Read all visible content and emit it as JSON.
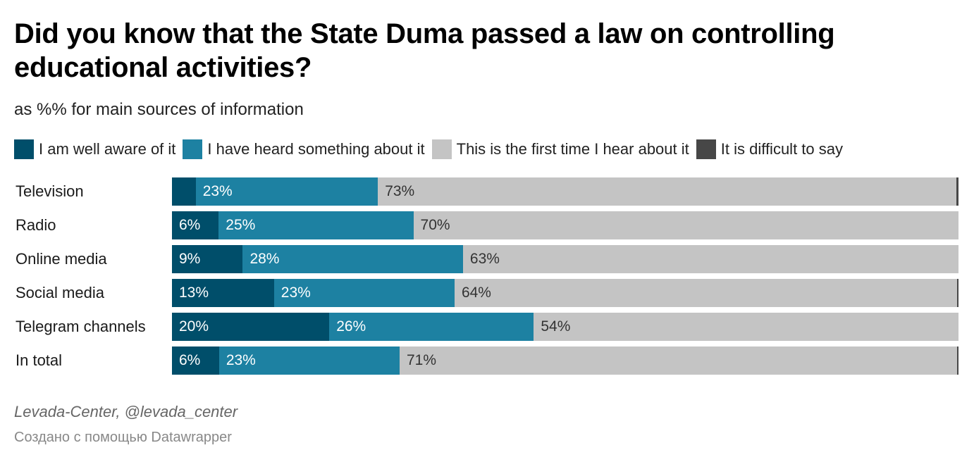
{
  "title": "Did you know that the State Duma passed a law on controlling educational activities?",
  "subtitle": "as %% for main sources of information",
  "legend": [
    {
      "label": "I am well aware of it",
      "color": "#004e6a"
    },
    {
      "label": "I have heard something about it",
      "color": "#1d81a2"
    },
    {
      "label": "This is the first time I hear about it",
      "color": "#c4c4c4"
    },
    {
      "label": "It is difficult to say",
      "color": "#474747"
    }
  ],
  "chart_data": {
    "type": "bar",
    "orientation": "horizontal",
    "stacked": true,
    "unit": "%",
    "categories": [
      "Television",
      "Radio",
      "Online media",
      "Social media",
      "Telegram channels",
      "In total"
    ],
    "series": [
      {
        "name": "I am well aware of it",
        "color": "#004e6a",
        "values": [
          3,
          6,
          9,
          13,
          20,
          6
        ],
        "labels": [
          "",
          "6%",
          "9%",
          "13%",
          "20%",
          "6%"
        ]
      },
      {
        "name": "I have heard something about it",
        "color": "#1d81a2",
        "values": [
          23,
          25,
          28,
          23,
          26,
          23
        ],
        "labels": [
          "23%",
          "25%",
          "28%",
          "23%",
          "26%",
          "23%"
        ]
      },
      {
        "name": "This is the first time I hear about it",
        "color": "#c4c4c4",
        "values": [
          73,
          70,
          63,
          64,
          54,
          71
        ],
        "labels": [
          "73%",
          "70%",
          "63%",
          "64%",
          "54%",
          "71%"
        ]
      },
      {
        "name": "It is difficult to say",
        "color": "#474747",
        "values": [
          0.3,
          0,
          0,
          0.2,
          0,
          0.2
        ],
        "labels": [
          "",
          "",
          "",
          "",
          "",
          ""
        ]
      }
    ]
  },
  "footer": {
    "source": "Levada-Center, @levada_center",
    "credit": "Создано с помощью Datawrapper"
  }
}
